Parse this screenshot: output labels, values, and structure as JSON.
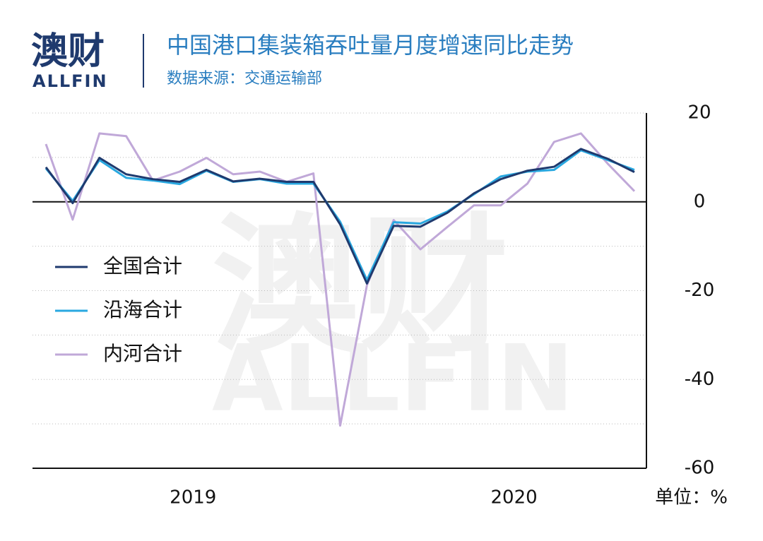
{
  "brand": {
    "name": "澳财",
    "latin": "ALLFIN"
  },
  "chart_data": {
    "type": "line",
    "title": "中国港口集装箱吞吐量月度增速同比走势",
    "subtitle": "数据来源：交通运输部",
    "unit_label": "单位：%",
    "categories": [
      null,
      null,
      null,
      null,
      null,
      null,
      null,
      null,
      null,
      null,
      null,
      null,
      null,
      null,
      null,
      null,
      null,
      null,
      null,
      null,
      null,
      null,
      null
    ],
    "x_groups": [
      {
        "label": "2019",
        "count": 12
      },
      {
        "label": "2020",
        "count": 11
      }
    ],
    "ylim": [
      -60,
      20
    ],
    "yticks": [
      20,
      0,
      -20,
      -40,
      -60
    ],
    "ygrid": [
      20,
      10,
      0,
      -10,
      -20,
      -30,
      -40,
      -50
    ],
    "legend": "left",
    "series": [
      {
        "name": "全国合计",
        "color": "#1f3a6e",
        "values": [
          7.8,
          -0.3,
          9.9,
          6.2,
          5.1,
          4.5,
          7.2,
          4.6,
          5.2,
          4.5,
          4.5,
          -5.1,
          -18.4,
          -5.4,
          -5.6,
          -2.5,
          1.9,
          5.1,
          7.0,
          7.9,
          11.9,
          9.7,
          6.7
        ]
      },
      {
        "name": "沿海合计",
        "color": "#29a8e0",
        "values": [
          7.5,
          0.2,
          9.4,
          5.4,
          4.8,
          4.0,
          7.0,
          4.5,
          5.1,
          4.1,
          4.1,
          -4.5,
          -17.6,
          -4.6,
          -4.9,
          -2.2,
          1.7,
          5.7,
          6.8,
          7.2,
          11.6,
          9.4,
          7.2
        ]
      },
      {
        "name": "内河合计",
        "color": "#c0a8d8",
        "values": [
          13.0,
          -4.0,
          15.4,
          14.8,
          4.8,
          6.8,
          9.9,
          6.2,
          6.8,
          4.5,
          6.4,
          -50.4,
          -18.8,
          -4.1,
          -10.7,
          -5.7,
          -0.8,
          -0.8,
          4.1,
          13.5,
          15.4,
          8.6,
          2.4
        ]
      }
    ]
  }
}
